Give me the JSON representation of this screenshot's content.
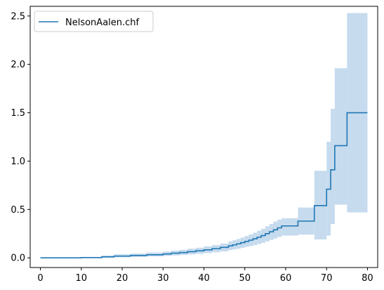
{
  "colors": {
    "line": "#1f77b4",
    "band": "#c6dbee",
    "axes": "#000000",
    "background": "#ffffff"
  },
  "chart_data": {
    "type": "line",
    "title": "",
    "xlabel": "",
    "ylabel": "",
    "xlim": [
      -2.5,
      82.5
    ],
    "ylim": [
      -0.1,
      2.6
    ],
    "x_ticks": [
      0,
      10,
      20,
      30,
      40,
      50,
      60,
      70,
      80
    ],
    "y_ticks": [
      0.0,
      0.5,
      1.0,
      1.5,
      2.0,
      2.5
    ],
    "x_tick_labels": [
      "0",
      "10",
      "20",
      "30",
      "40",
      "50",
      "60",
      "70",
      "80"
    ],
    "y_tick_labels": [
      "0.0",
      "0.5",
      "1.0",
      "1.5",
      "2.0",
      "2.5"
    ],
    "grid": false,
    "legend": {
      "position": "top-left",
      "entries": [
        "NelsonAalen.chf"
      ]
    },
    "series": [
      {
        "name": "NelsonAalen.chf",
        "step": "post",
        "x": [
          0,
          10,
          15,
          18,
          22,
          26,
          30,
          32,
          34,
          36,
          38,
          40,
          42,
          44,
          46,
          47,
          48,
          49,
          50,
          51,
          52,
          53,
          54,
          55,
          56,
          57,
          58,
          59,
          63,
          67,
          70,
          71,
          72,
          75,
          80
        ],
        "y": [
          0,
          0.003,
          0.01,
          0.018,
          0.025,
          0.032,
          0.04,
          0.048,
          0.055,
          0.064,
          0.073,
          0.083,
          0.095,
          0.108,
          0.124,
          0.134,
          0.145,
          0.157,
          0.17,
          0.183,
          0.197,
          0.213,
          0.23,
          0.25,
          0.27,
          0.29,
          0.31,
          0.33,
          0.38,
          0.54,
          0.71,
          0.91,
          1.16,
          1.5,
          1.5
        ],
        "lower": [
          0,
          0,
          0.002,
          0.006,
          0.01,
          0.015,
          0.02,
          0.025,
          0.03,
          0.036,
          0.042,
          0.05,
          0.058,
          0.068,
          0.08,
          0.087,
          0.095,
          0.104,
          0.113,
          0.122,
          0.132,
          0.143,
          0.155,
          0.17,
          0.185,
          0.2,
          0.215,
          0.23,
          0.24,
          0.19,
          0.23,
          0.35,
          0.55,
          0.47,
          0.47
        ],
        "upper": [
          0.003,
          0.008,
          0.025,
          0.038,
          0.045,
          0.055,
          0.065,
          0.075,
          0.083,
          0.095,
          0.105,
          0.118,
          0.132,
          0.148,
          0.17,
          0.182,
          0.196,
          0.21,
          0.226,
          0.242,
          0.26,
          0.28,
          0.3,
          0.325,
          0.35,
          0.375,
          0.395,
          0.41,
          0.52,
          0.9,
          1.2,
          1.54,
          1.96,
          2.53,
          2.53
        ]
      }
    ]
  }
}
